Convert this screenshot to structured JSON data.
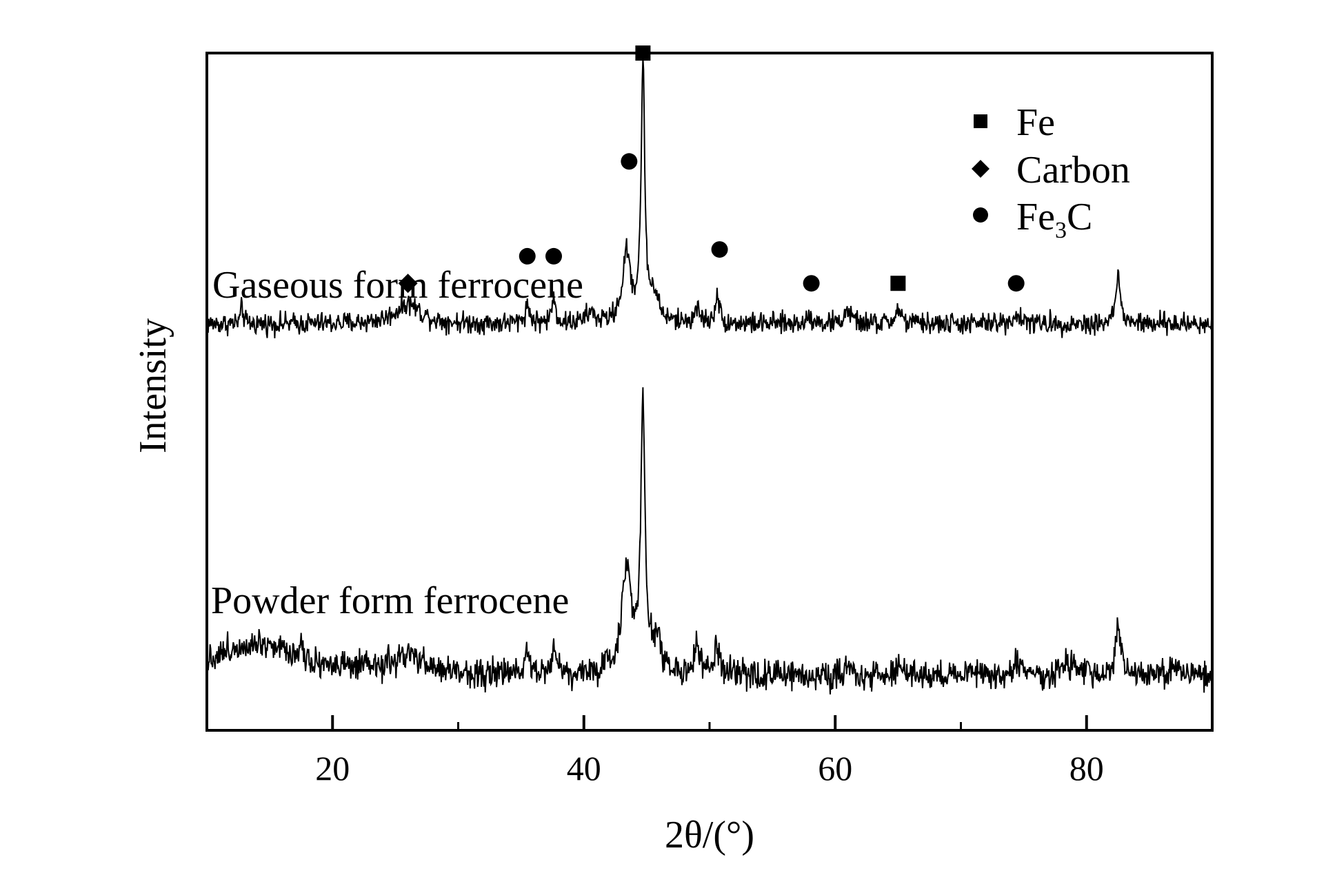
{
  "chart_data": {
    "type": "line",
    "xlabel": "2θ/(°)",
    "ylabel": "Intensity",
    "xlim": [
      10,
      90
    ],
    "xticks_major": [
      20,
      40,
      60,
      80
    ],
    "xticks_minor": [
      30,
      50,
      70
    ],
    "y_tick_labels": false,
    "legend": {
      "placement": "top-right",
      "entries": [
        {
          "marker": "square",
          "label": "Fe"
        },
        {
          "marker": "diamond",
          "label": "Carbon"
        },
        {
          "marker": "circle",
          "label": "Fe",
          "subscript": "3",
          "suffix": "C"
        }
      ]
    },
    "series": [
      {
        "name": "Gaseous form ferrocene",
        "baseline": 0.6,
        "noise": 0.016,
        "x_range": [
          10,
          90
        ],
        "peaks": [
          {
            "x": 12.8,
            "height": 0.025,
            "width": 0.12
          },
          {
            "x": 26.0,
            "height": 0.03,
            "width": 1.2
          },
          {
            "x": 35.5,
            "height": 0.025,
            "width": 0.25
          },
          {
            "x": 37.6,
            "height": 0.035,
            "width": 0.2
          },
          {
            "x": 40.5,
            "height": 0.015,
            "width": 0.4
          },
          {
            "x": 43.4,
            "height": 0.1,
            "width": 0.4
          },
          {
            "x": 44.7,
            "height": 0.37,
            "width": 0.18
          },
          {
            "x": 45.6,
            "height": 0.04,
            "width": 0.4
          },
          {
            "x": 49.0,
            "height": 0.02,
            "width": 0.3
          },
          {
            "x": 50.6,
            "height": 0.045,
            "width": 0.18
          },
          {
            "x": 58.0,
            "height": 0.012,
            "width": 0.3
          },
          {
            "x": 61.0,
            "height": 0.02,
            "width": 0.3
          },
          {
            "x": 65.0,
            "height": 0.02,
            "width": 0.3
          },
          {
            "x": 74.4,
            "height": 0.012,
            "width": 0.5
          },
          {
            "x": 82.5,
            "height": 0.07,
            "width": 0.22
          }
        ],
        "markers": [
          {
            "x": 26.0,
            "y": 0.66,
            "symbol": "diamond"
          },
          {
            "x": 35.5,
            "y": 0.7,
            "symbol": "circle"
          },
          {
            "x": 37.6,
            "y": 0.7,
            "symbol": "circle"
          },
          {
            "x": 43.6,
            "y": 0.84,
            "symbol": "circle"
          },
          {
            "x": 44.7,
            "y": 1.0,
            "symbol": "square"
          },
          {
            "x": 50.8,
            "y": 0.71,
            "symbol": "circle"
          },
          {
            "x": 58.1,
            "y": 0.66,
            "symbol": "circle"
          },
          {
            "x": 65.0,
            "y": 0.66,
            "symbol": "square"
          },
          {
            "x": 74.4,
            "y": 0.66,
            "symbol": "circle"
          }
        ]
      },
      {
        "name": "Powder form ferrocene",
        "baseline": 0.08,
        "noise": 0.022,
        "x_range": [
          10,
          90
        ],
        "peaks": [
          {
            "x": 14.0,
            "height": 0.05,
            "width": 4.0
          },
          {
            "x": 17.5,
            "height": 0.025,
            "width": 0.12
          },
          {
            "x": 26.0,
            "height": 0.025,
            "width": 1.5
          },
          {
            "x": 35.5,
            "height": 0.04,
            "width": 0.25
          },
          {
            "x": 37.6,
            "height": 0.04,
            "width": 0.25
          },
          {
            "x": 43.4,
            "height": 0.15,
            "width": 0.5
          },
          {
            "x": 44.7,
            "height": 0.4,
            "width": 0.2
          },
          {
            "x": 45.8,
            "height": 0.05,
            "width": 0.4
          },
          {
            "x": 49.0,
            "height": 0.035,
            "width": 0.3
          },
          {
            "x": 50.6,
            "height": 0.04,
            "width": 0.25
          },
          {
            "x": 61.0,
            "height": 0.01,
            "width": 0.5
          },
          {
            "x": 65.0,
            "height": 0.01,
            "width": 0.5
          },
          {
            "x": 71.0,
            "height": 0.012,
            "width": 0.3
          },
          {
            "x": 74.4,
            "height": 0.02,
            "width": 0.3
          },
          {
            "x": 78.5,
            "height": 0.015,
            "width": 0.8
          },
          {
            "x": 82.5,
            "height": 0.075,
            "width": 0.25
          },
          {
            "x": 87.0,
            "height": 0.015,
            "width": 0.4
          }
        ]
      }
    ]
  }
}
